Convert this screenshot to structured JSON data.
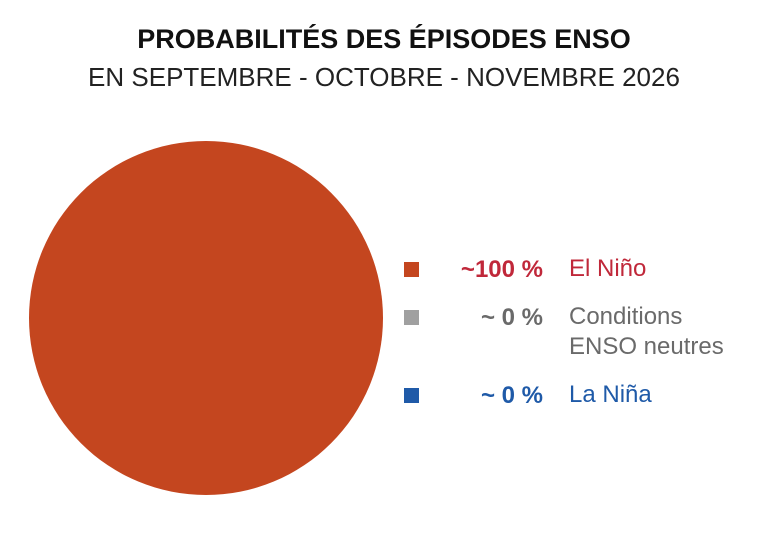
{
  "chart_data": {
    "type": "pie",
    "title": "PROBABILITÉS DES ÉPISODES ENSO",
    "subtitle": "EN SEPTEMBRE - OCTOBRE - NOVEMBRE 2026",
    "categories": [
      "El Niño",
      "Conditions ENSO neutres",
      "La Niña"
    ],
    "values": [
      100,
      0,
      0
    ],
    "value_labels": [
      "~100 %",
      "~ 0 %",
      "~ 0 %"
    ],
    "colors": [
      "#c4461f",
      "#a0a0a0",
      "#1f5aa8"
    ],
    "label_colors": [
      "#c0283a",
      "#6a6a6a",
      "#1f5aa8"
    ]
  }
}
